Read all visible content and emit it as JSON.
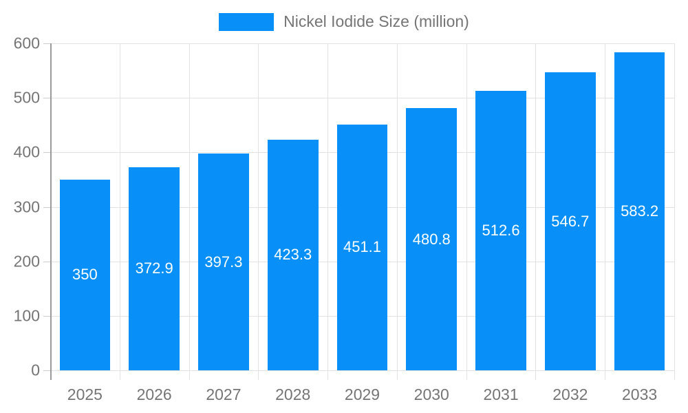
{
  "chart_data": {
    "type": "bar",
    "categories": [
      "2025",
      "2026",
      "2027",
      "2028",
      "2029",
      "2030",
      "2031",
      "2032",
      "2033"
    ],
    "series": [
      {
        "name": "Nickel Iodide Size (million)",
        "values": [
          350,
          372.9,
          397.3,
          423.3,
          451.1,
          480.8,
          512.6,
          546.7,
          583.2
        ]
      }
    ],
    "value_labels": [
      "350",
      "372.9",
      "397.3",
      "423.3",
      "451.1",
      "480.8",
      "512.6",
      "546.7",
      "583.2"
    ],
    "title": "",
    "xlabel": "",
    "ylabel": "",
    "ylim": [
      0,
      600
    ],
    "yticks": [
      0,
      100,
      200,
      300,
      400,
      500,
      600
    ],
    "ytick_labels": [
      "0",
      "100",
      "200",
      "300",
      "400",
      "500",
      "600"
    ],
    "grid": "on",
    "legend_position": "top-center",
    "colors": {
      "bar": "#0890F8",
      "grid": "#e2e2e2",
      "axis": "#9a9a9a",
      "tick": "#cccccc",
      "text": "#757575",
      "value_label": "#ffffff",
      "background": "#ffffff"
    }
  }
}
